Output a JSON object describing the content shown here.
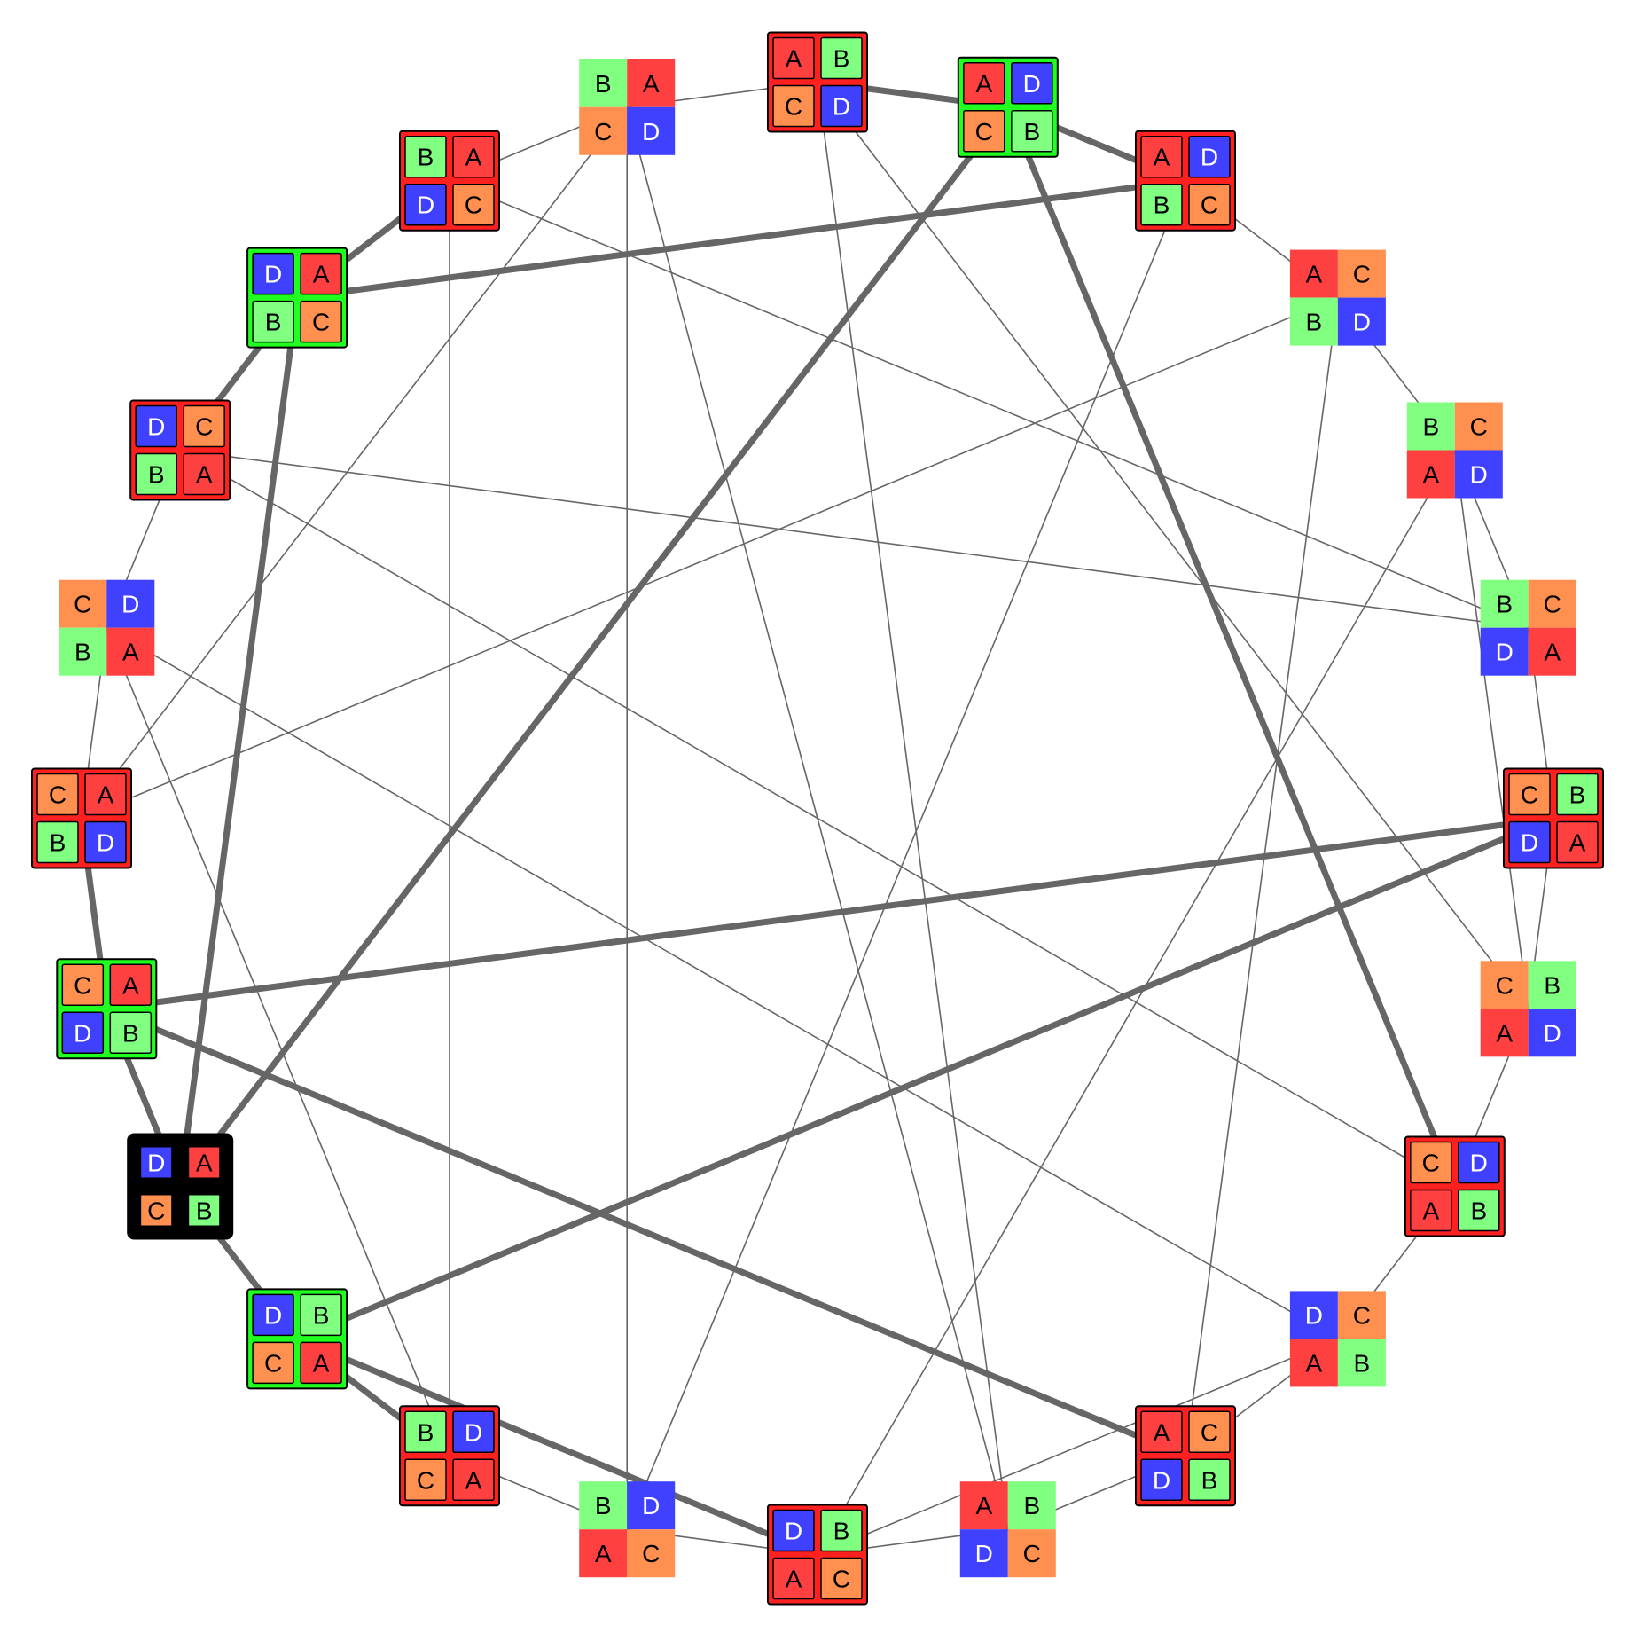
{
  "colors": {
    "A": "#ff4040",
    "B": "#80ff80",
    "C": "#ff9050",
    "D": "#4040ff",
    "edge": "#666666",
    "frame_red": "#ff2020",
    "frame_green": "#20ff20",
    "frame_black": "#000000"
  },
  "nodes": [
    {
      "id": "n00",
      "cells": [
        "A",
        "B",
        "C",
        "D"
      ],
      "style": "red"
    },
    {
      "id": "n01",
      "cells": [
        "A",
        "D",
        "C",
        "B"
      ],
      "style": "green"
    },
    {
      "id": "n02",
      "cells": [
        "A",
        "D",
        "B",
        "C"
      ],
      "style": "red"
    },
    {
      "id": "n03",
      "cells": [
        "A",
        "C",
        "B",
        "D"
      ],
      "style": "plain"
    },
    {
      "id": "n04",
      "cells": [
        "B",
        "C",
        "A",
        "D"
      ],
      "style": "plain"
    },
    {
      "id": "n05",
      "cells": [
        "B",
        "C",
        "D",
        "A"
      ],
      "style": "plain"
    },
    {
      "id": "n06",
      "cells": [
        "C",
        "B",
        "D",
        "A"
      ],
      "style": "red"
    },
    {
      "id": "n07",
      "cells": [
        "C",
        "B",
        "A",
        "D"
      ],
      "style": "plain"
    },
    {
      "id": "n08",
      "cells": [
        "C",
        "D",
        "A",
        "B"
      ],
      "style": "red"
    },
    {
      "id": "n09",
      "cells": [
        "D",
        "C",
        "A",
        "B"
      ],
      "style": "plain"
    },
    {
      "id": "n10",
      "cells": [
        "A",
        "C",
        "D",
        "B"
      ],
      "style": "red"
    },
    {
      "id": "n11",
      "cells": [
        "A",
        "B",
        "D",
        "C"
      ],
      "style": "plain"
    },
    {
      "id": "n12",
      "cells": [
        "D",
        "B",
        "A",
        "C"
      ],
      "style": "red"
    },
    {
      "id": "n13",
      "cells": [
        "B",
        "D",
        "A",
        "C"
      ],
      "style": "plain"
    },
    {
      "id": "n14",
      "cells": [
        "B",
        "D",
        "C",
        "A"
      ],
      "style": "red"
    },
    {
      "id": "n15",
      "cells": [
        "D",
        "B",
        "C",
        "A"
      ],
      "style": "green"
    },
    {
      "id": "n16",
      "cells": [
        "D",
        "A",
        "C",
        "B"
      ],
      "style": "black"
    },
    {
      "id": "n17",
      "cells": [
        "C",
        "A",
        "D",
        "B"
      ],
      "style": "green"
    },
    {
      "id": "n18",
      "cells": [
        "C",
        "A",
        "B",
        "D"
      ],
      "style": "red"
    },
    {
      "id": "n19",
      "cells": [
        "C",
        "D",
        "B",
        "A"
      ],
      "style": "plain"
    },
    {
      "id": "n20",
      "cells": [
        "D",
        "C",
        "B",
        "A"
      ],
      "style": "red"
    },
    {
      "id": "n21",
      "cells": [
        "D",
        "A",
        "B",
        "C"
      ],
      "style": "green"
    },
    {
      "id": "n22",
      "cells": [
        "B",
        "A",
        "D",
        "C"
      ],
      "style": "red"
    },
    {
      "id": "n23",
      "cells": [
        "B",
        "A",
        "C",
        "D"
      ],
      "style": "plain"
    }
  ],
  "edges": [
    {
      "from": "n00",
      "to": "n01",
      "bold": true
    },
    {
      "from": "n01",
      "to": "n02",
      "bold": true
    },
    {
      "from": "n02",
      "to": "n03",
      "bold": false
    },
    {
      "from": "n03",
      "to": "n04",
      "bold": false
    },
    {
      "from": "n04",
      "to": "n05",
      "bold": false
    },
    {
      "from": "n05",
      "to": "n06",
      "bold": false
    },
    {
      "from": "n06",
      "to": "n07",
      "bold": false
    },
    {
      "from": "n07",
      "to": "n08",
      "bold": false
    },
    {
      "from": "n08",
      "to": "n09",
      "bold": false
    },
    {
      "from": "n09",
      "to": "n10",
      "bold": false
    },
    {
      "from": "n10",
      "to": "n11",
      "bold": false
    },
    {
      "from": "n11",
      "to": "n12",
      "bold": false
    },
    {
      "from": "n12",
      "to": "n13",
      "bold": false
    },
    {
      "from": "n13",
      "to": "n14",
      "bold": false
    },
    {
      "from": "n14",
      "to": "n15",
      "bold": true
    },
    {
      "from": "n15",
      "to": "n16",
      "bold": true
    },
    {
      "from": "n16",
      "to": "n17",
      "bold": true
    },
    {
      "from": "n17",
      "to": "n18",
      "bold": true
    },
    {
      "from": "n18",
      "to": "n19",
      "bold": false
    },
    {
      "from": "n19",
      "to": "n20",
      "bold": false
    },
    {
      "from": "n20",
      "to": "n21",
      "bold": true
    },
    {
      "from": "n21",
      "to": "n22",
      "bold": true
    },
    {
      "from": "n22",
      "to": "n23",
      "bold": false
    },
    {
      "from": "n23",
      "to": "n00",
      "bold": false
    },
    {
      "from": "n01",
      "to": "n16",
      "bold": true
    },
    {
      "from": "n01",
      "to": "n08",
      "bold": true
    },
    {
      "from": "n02",
      "to": "n21",
      "bold": true
    },
    {
      "from": "n06",
      "to": "n17",
      "bold": true
    },
    {
      "from": "n06",
      "to": "n15",
      "bold": true
    },
    {
      "from": "n10",
      "to": "n17",
      "bold": true
    },
    {
      "from": "n12",
      "to": "n15",
      "bold": true
    },
    {
      "from": "n21",
      "to": "n16",
      "bold": true
    },
    {
      "from": "n00",
      "to": "n11",
      "bold": false
    },
    {
      "from": "n00",
      "to": "n07",
      "bold": false
    },
    {
      "from": "n02",
      "to": "n13",
      "bold": false
    },
    {
      "from": "n03",
      "to": "n18",
      "bold": false
    },
    {
      "from": "n03",
      "to": "n10",
      "bold": false
    },
    {
      "from": "n04",
      "to": "n07",
      "bold": false
    },
    {
      "from": "n04",
      "to": "n12",
      "bold": false
    },
    {
      "from": "n05",
      "to": "n22",
      "bold": false
    },
    {
      "from": "n05",
      "to": "n20",
      "bold": false
    },
    {
      "from": "n09",
      "to": "n12",
      "bold": false
    },
    {
      "from": "n09",
      "to": "n19",
      "bold": false
    },
    {
      "from": "n08",
      "to": "n20",
      "bold": false
    },
    {
      "from": "n11",
      "to": "n23",
      "bold": false
    },
    {
      "from": "n13",
      "to": "n23",
      "bold": false
    },
    {
      "from": "n14",
      "to": "n22",
      "bold": false
    },
    {
      "from": "n14",
      "to": "n19",
      "bold": false
    },
    {
      "from": "n18",
      "to": "n23",
      "bold": false
    }
  ]
}
